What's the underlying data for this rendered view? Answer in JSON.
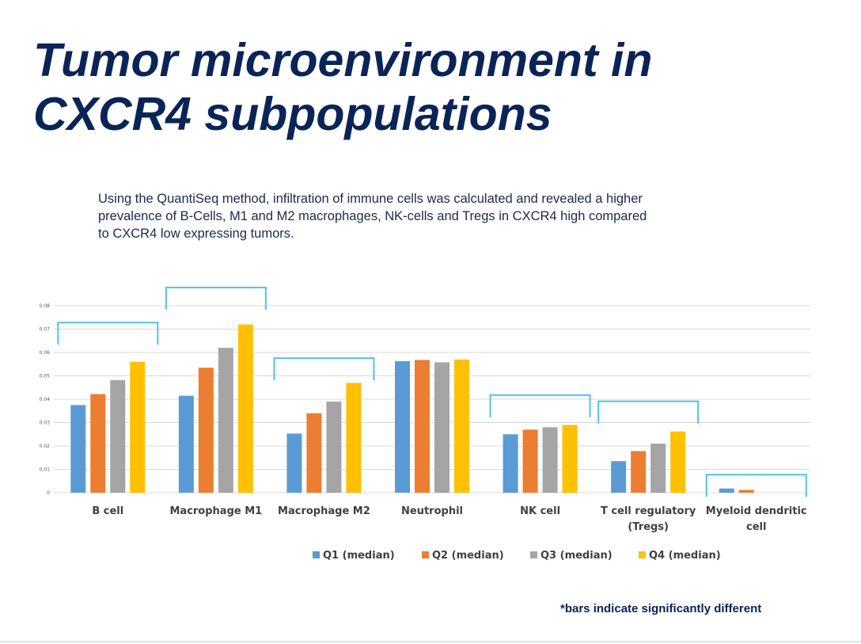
{
  "slide": {
    "title_line1": "Tumor microenvironment in",
    "title_line2": "CXCR4 subpopulations",
    "intro_line1": "Using the QuantiSeq method, infiltration of immune cells was calculated and revealed a higher",
    "intro_line2": "prevalence of B-Cells, M1 and M2 macrophages, NK-cells and Tregs in CXCR4 high compared",
    "intro_line3": "to CXCR4 low expressing tumors.",
    "footnote": "*bars indicate significantly different"
  },
  "chart_data": {
    "type": "bar",
    "categories": [
      [
        "B cell"
      ],
      [
        "Macrophage M1"
      ],
      [
        "Macrophage M2"
      ],
      [
        "Neutrophil"
      ],
      [
        "NK cell"
      ],
      [
        "T cell regulatory",
        "(Tregs)"
      ],
      [
        "Myeloid dendritic",
        "cell"
      ]
    ],
    "series": [
      {
        "name": "Q1 (median)",
        "color": "#5b9bd5",
        "values": [
          0.0375,
          0.0415,
          0.0253,
          0.0563,
          0.025,
          0.0135,
          0.0018
        ]
      },
      {
        "name": "Q2 (median)",
        "color": "#ed7d31",
        "values": [
          0.0422,
          0.0535,
          0.034,
          0.0568,
          0.027,
          0.0178,
          0.0012
        ]
      },
      {
        "name": "Q3 (median)",
        "color": "#a5a5a5",
        "values": [
          0.0482,
          0.062,
          0.039,
          0.0558,
          0.028,
          0.021,
          0.0
        ]
      },
      {
        "name": "Q4 (median)",
        "color": "#ffc000",
        "values": [
          0.056,
          0.072,
          0.047,
          0.057,
          0.029,
          0.0262,
          0.0
        ]
      }
    ],
    "yticks": [
      "0",
      "0.01",
      "0.02",
      "0.03",
      "0.04",
      "0.05",
      "0.06",
      "0.07",
      "0.08"
    ],
    "ylim": [
      0,
      0.08
    ],
    "grid": true,
    "legend_position": "bottom",
    "significance_brackets": [
      {
        "category": 0,
        "level": 0.0728
      },
      {
        "category": 1,
        "level": 0.0878
      },
      {
        "category": 2,
        "level": 0.0576
      },
      {
        "category": 4,
        "level": 0.0418
      },
      {
        "category": 5,
        "level": 0.0391
      },
      {
        "category": 6,
        "level": 0.0077
      }
    ],
    "bracket_color": "#4fc3e8",
    "grid_color": "#d9d9d9",
    "label_color": "#404040"
  }
}
